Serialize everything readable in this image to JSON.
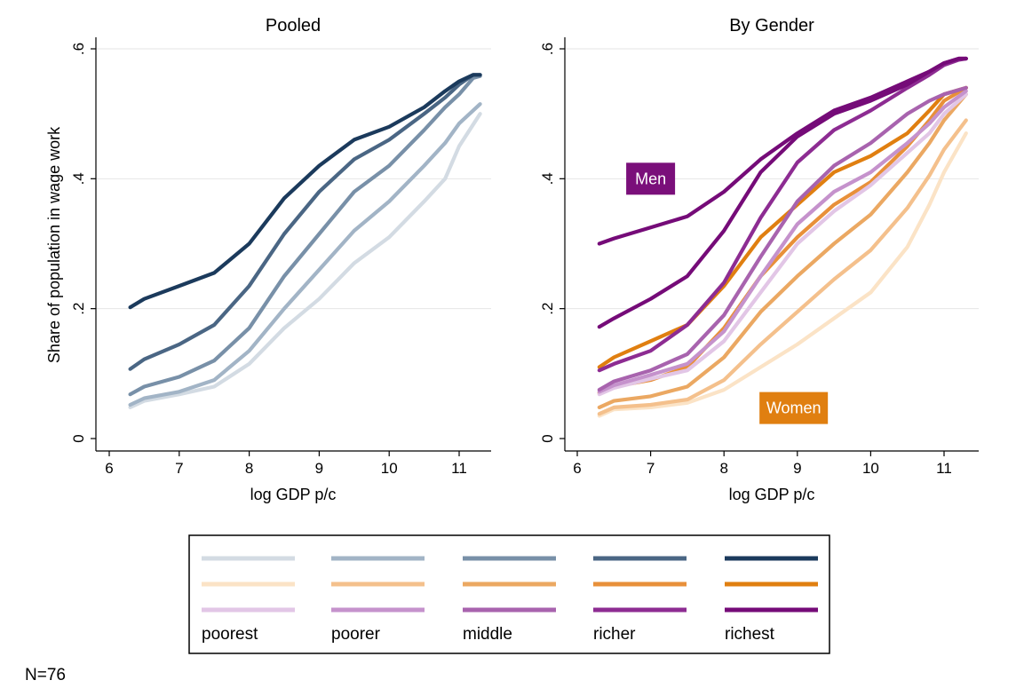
{
  "chart_data": [
    {
      "type": "line",
      "title": "Pooled",
      "xlabel": "log GDP p/c",
      "ylabel": "Share of population in wage work",
      "xlim": [
        6,
        11.4
      ],
      "ylim": [
        0,
        0.6
      ],
      "xticks": [
        "6",
        "7",
        "8",
        "9",
        "10",
        "11"
      ],
      "yticks": [
        "0",
        ".2",
        ".4",
        ".6"
      ],
      "grid": true,
      "series": [
        {
          "name": "poorest",
          "color": "#d3dbe3",
          "x": [
            6.3,
            6.5,
            7.0,
            7.5,
            8.0,
            8.5,
            9.0,
            9.5,
            10.0,
            10.5,
            10.8,
            11.0,
            11.3
          ],
          "y": [
            0.048,
            0.058,
            0.068,
            0.08,
            0.115,
            0.17,
            0.215,
            0.27,
            0.31,
            0.365,
            0.4,
            0.45,
            0.5
          ]
        },
        {
          "name": "poorer",
          "color": "#a2b4c6",
          "x": [
            6.3,
            6.5,
            7.0,
            7.5,
            8.0,
            8.5,
            9.0,
            9.5,
            10.0,
            10.5,
            10.8,
            11.0,
            11.3
          ],
          "y": [
            0.052,
            0.062,
            0.072,
            0.09,
            0.135,
            0.2,
            0.26,
            0.32,
            0.365,
            0.42,
            0.455,
            0.485,
            0.515
          ]
        },
        {
          "name": "middle",
          "color": "#7890a8",
          "x": [
            6.3,
            6.5,
            7.0,
            7.5,
            8.0,
            8.5,
            9.0,
            9.5,
            10.0,
            10.5,
            10.8,
            11.0,
            11.2,
            11.3
          ],
          "y": [
            0.068,
            0.08,
            0.095,
            0.12,
            0.17,
            0.25,
            0.315,
            0.38,
            0.42,
            0.475,
            0.51,
            0.53,
            0.555,
            0.558
          ]
        },
        {
          "name": "richer",
          "color": "#4a6684",
          "x": [
            6.3,
            6.5,
            7.0,
            7.5,
            8.0,
            8.5,
            9.0,
            9.5,
            10.0,
            10.5,
            10.8,
            11.0,
            11.2,
            11.3
          ],
          "y": [
            0.107,
            0.122,
            0.145,
            0.175,
            0.235,
            0.315,
            0.38,
            0.43,
            0.46,
            0.5,
            0.525,
            0.545,
            0.56,
            0.56
          ]
        },
        {
          "name": "richest",
          "color": "#1b3a5c",
          "x": [
            6.3,
            6.5,
            7.0,
            7.5,
            8.0,
            8.5,
            9.0,
            9.5,
            10.0,
            10.5,
            10.8,
            11.0,
            11.2,
            11.3
          ],
          "y": [
            0.202,
            0.215,
            0.235,
            0.255,
            0.3,
            0.37,
            0.42,
            0.46,
            0.48,
            0.51,
            0.535,
            0.55,
            0.56,
            0.56
          ]
        }
      ]
    },
    {
      "type": "line",
      "title": "By Gender",
      "xlabel": "log GDP p/c",
      "ylabel": "",
      "xlim": [
        6,
        11.5
      ],
      "ylim": [
        0,
        0.6
      ],
      "xticks": [
        "6",
        "7",
        "8",
        "9",
        "10",
        "11"
      ],
      "yticks": [
        "0",
        ".2",
        ".4",
        ".6"
      ],
      "grid": true,
      "annotations": [
        {
          "text": "Men",
          "color": "#7a0f7a",
          "x": 7.0,
          "y": 0.4
        },
        {
          "text": "Women",
          "color": "#e07f10",
          "x": 8.95,
          "y": 0.047
        }
      ],
      "series": [
        {
          "name": "poorest",
          "group": "Women",
          "color": "#fbe3c6",
          "x": [
            6.3,
            6.5,
            7.0,
            7.5,
            8.0,
            8.5,
            9.0,
            9.5,
            10.0,
            10.5,
            10.8,
            11.0,
            11.3
          ],
          "y": [
            0.035,
            0.045,
            0.048,
            0.055,
            0.075,
            0.11,
            0.145,
            0.185,
            0.225,
            0.295,
            0.36,
            0.41,
            0.47
          ]
        },
        {
          "name": "poorer",
          "group": "Women",
          "color": "#f4c08c",
          "x": [
            6.3,
            6.5,
            7.0,
            7.5,
            8.0,
            8.5,
            9.0,
            9.5,
            10.0,
            10.5,
            10.8,
            11.0,
            11.3
          ],
          "y": [
            0.038,
            0.048,
            0.052,
            0.06,
            0.09,
            0.145,
            0.195,
            0.245,
            0.29,
            0.355,
            0.405,
            0.445,
            0.49
          ]
        },
        {
          "name": "middle",
          "group": "Women",
          "color": "#eba862",
          "x": [
            6.3,
            6.5,
            7.0,
            7.5,
            8.0,
            8.5,
            9.0,
            9.5,
            10.0,
            10.5,
            10.8,
            11.0,
            11.3
          ],
          "y": [
            0.048,
            0.058,
            0.065,
            0.08,
            0.125,
            0.195,
            0.25,
            0.3,
            0.345,
            0.41,
            0.455,
            0.49,
            0.53
          ]
        },
        {
          "name": "richer",
          "group": "Women",
          "color": "#e8903a",
          "x": [
            6.3,
            6.5,
            7.0,
            7.5,
            8.0,
            8.5,
            9.0,
            9.5,
            10.0,
            10.5,
            10.8,
            11.0,
            11.3
          ],
          "y": [
            0.07,
            0.08,
            0.09,
            0.11,
            0.17,
            0.25,
            0.31,
            0.36,
            0.395,
            0.45,
            0.49,
            0.52,
            0.54
          ]
        },
        {
          "name": "richest",
          "group": "Women",
          "color": "#e07f10",
          "x": [
            6.3,
            6.5,
            7.0,
            7.5,
            8.0,
            8.5,
            9.0,
            9.5,
            10.0,
            10.5,
            10.8,
            11.0,
            11.3
          ],
          "y": [
            0.11,
            0.125,
            0.15,
            0.175,
            0.235,
            0.31,
            0.36,
            0.41,
            0.435,
            0.47,
            0.505,
            0.53,
            0.54
          ]
        },
        {
          "name": "poorest",
          "group": "Men",
          "color": "#e2c6e6",
          "x": [
            6.3,
            6.5,
            7.0,
            7.5,
            8.0,
            8.5,
            9.0,
            9.5,
            10.0,
            10.5,
            10.8,
            11.0,
            11.3
          ],
          "y": [
            0.068,
            0.078,
            0.092,
            0.105,
            0.15,
            0.225,
            0.3,
            0.35,
            0.39,
            0.44,
            0.47,
            0.5,
            0.53
          ]
        },
        {
          "name": "poorer",
          "group": "Men",
          "color": "#c592cc",
          "x": [
            6.3,
            6.5,
            7.0,
            7.5,
            8.0,
            8.5,
            9.0,
            9.5,
            10.0,
            10.5,
            10.8,
            11.0,
            11.3
          ],
          "y": [
            0.072,
            0.082,
            0.098,
            0.115,
            0.165,
            0.25,
            0.33,
            0.38,
            0.41,
            0.455,
            0.485,
            0.51,
            0.535
          ]
        },
        {
          "name": "middle",
          "group": "Men",
          "color": "#a863ae",
          "x": [
            6.3,
            6.5,
            7.0,
            7.5,
            8.0,
            8.5,
            9.0,
            9.5,
            10.0,
            10.5,
            10.8,
            11.0,
            11.3
          ],
          "y": [
            0.075,
            0.088,
            0.105,
            0.13,
            0.19,
            0.28,
            0.365,
            0.42,
            0.455,
            0.5,
            0.52,
            0.53,
            0.54
          ]
        },
        {
          "name": "richer",
          "group": "Men",
          "color": "#8d2c92",
          "x": [
            6.3,
            6.5,
            7.0,
            7.5,
            8.0,
            8.5,
            9.0,
            9.5,
            10.0,
            10.5,
            10.8,
            11.0,
            11.2,
            11.3
          ],
          "y": [
            0.105,
            0.115,
            0.135,
            0.175,
            0.24,
            0.34,
            0.425,
            0.475,
            0.505,
            0.54,
            0.56,
            0.575,
            0.583,
            0.585
          ]
        },
        {
          "name": "richest",
          "group": "Men",
          "color": "#750b78",
          "x": [
            6.3,
            6.5,
            7.0,
            7.5,
            8.0,
            8.5,
            9.0,
            9.5,
            10.0,
            10.5,
            10.8,
            11.0,
            11.2,
            11.3
          ],
          "y": [
            0.172,
            0.185,
            0.215,
            0.25,
            0.32,
            0.41,
            0.465,
            0.5,
            0.52,
            0.545,
            0.565,
            0.578,
            0.585,
            0.585
          ]
        },
        {
          "name": "richest",
          "group": "Men",
          "color": "#750b78",
          "x": [
            6.3,
            6.5,
            7.0,
            7.5,
            8.0,
            8.5,
            9.0,
            9.5,
            10.0,
            10.5,
            10.8,
            11.0,
            11.2,
            11.3
          ],
          "y": [
            0.3,
            0.308,
            0.325,
            0.342,
            0.38,
            0.43,
            0.47,
            0.505,
            0.525,
            0.55,
            0.565,
            0.578,
            0.585,
            0.585
          ]
        }
      ]
    }
  ],
  "legend": {
    "placement": "bottom",
    "rows": [
      [
        "#d3dbe3",
        "#a2b4c6",
        "#7890a8",
        "#4a6684",
        "#1b3a5c"
      ],
      [
        "#fbe3c6",
        "#f4c08c",
        "#eba862",
        "#e8903a",
        "#e07f10"
      ],
      [
        "#e2c6e6",
        "#c592cc",
        "#a863ae",
        "#8d2c92",
        "#750b78"
      ]
    ],
    "labels": [
      "poorest",
      "poorer",
      "middle",
      "richer",
      "richest"
    ]
  },
  "note": "N=76"
}
